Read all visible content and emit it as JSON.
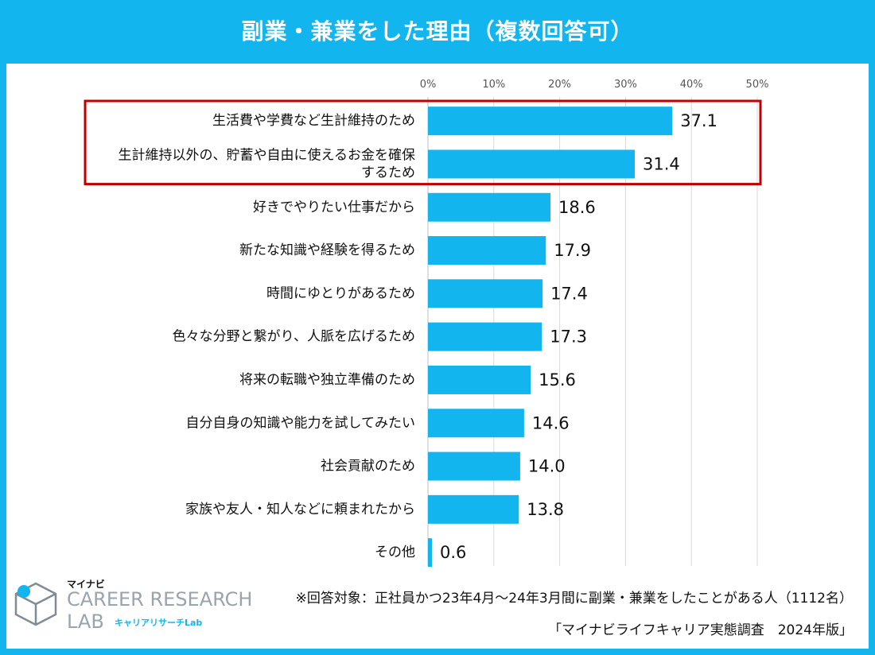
{
  "title": "副業・兼業をした理由（複数回答可）",
  "chart_data": {
    "type": "bar",
    "orientation": "horizontal",
    "xlim": [
      0,
      50
    ],
    "x_ticks": [
      "0%",
      "10%",
      "20%",
      "30%",
      "40%",
      "50%"
    ],
    "grid": true,
    "bar_color": "#12B5EE",
    "highlight_color": "#C00000",
    "highlighted_categories": [
      0,
      1
    ],
    "categories": [
      [
        "生活費や学費など生計維持のため"
      ],
      [
        "生計維持以外の、貯蓄や自由に使えるお金を確保",
        "するため"
      ],
      [
        "好きでやりたい仕事だから"
      ],
      [
        "新たな知識や経験を得るため"
      ],
      [
        "時間にゆとりがあるため"
      ],
      [
        "色々な分野と繋がり、人脈を広げるため"
      ],
      [
        "将来の転職や独立準備のため"
      ],
      [
        "自分自身の知識や能力を試してみたい"
      ],
      [
        "社会貢献のため"
      ],
      [
        "家族や友人・知人などに頼まれたから"
      ],
      [
        "その他"
      ]
    ],
    "values": [
      37.1,
      31.4,
      18.6,
      17.9,
      17.4,
      17.3,
      15.6,
      14.6,
      14.0,
      13.8,
      0.6
    ],
    "value_labels": [
      "37.1",
      "31.4",
      "18.6",
      "17.9",
      "17.4",
      "17.3",
      "15.6",
      "14.6",
      "14.0",
      "13.8",
      "0.6"
    ]
  },
  "footnote": "※回答対象：正社員かつ23年4月～24年3月間に副業・兼業をしたことがある人（1112名）",
  "source": "「マイナビライフキャリア実態調査　2024年版」",
  "logo": {
    "mynavi": "マイナビ",
    "line1": "CAREER RESEARCH",
    "line2": "LAB",
    "sub": "キャリアリサーチLab"
  }
}
